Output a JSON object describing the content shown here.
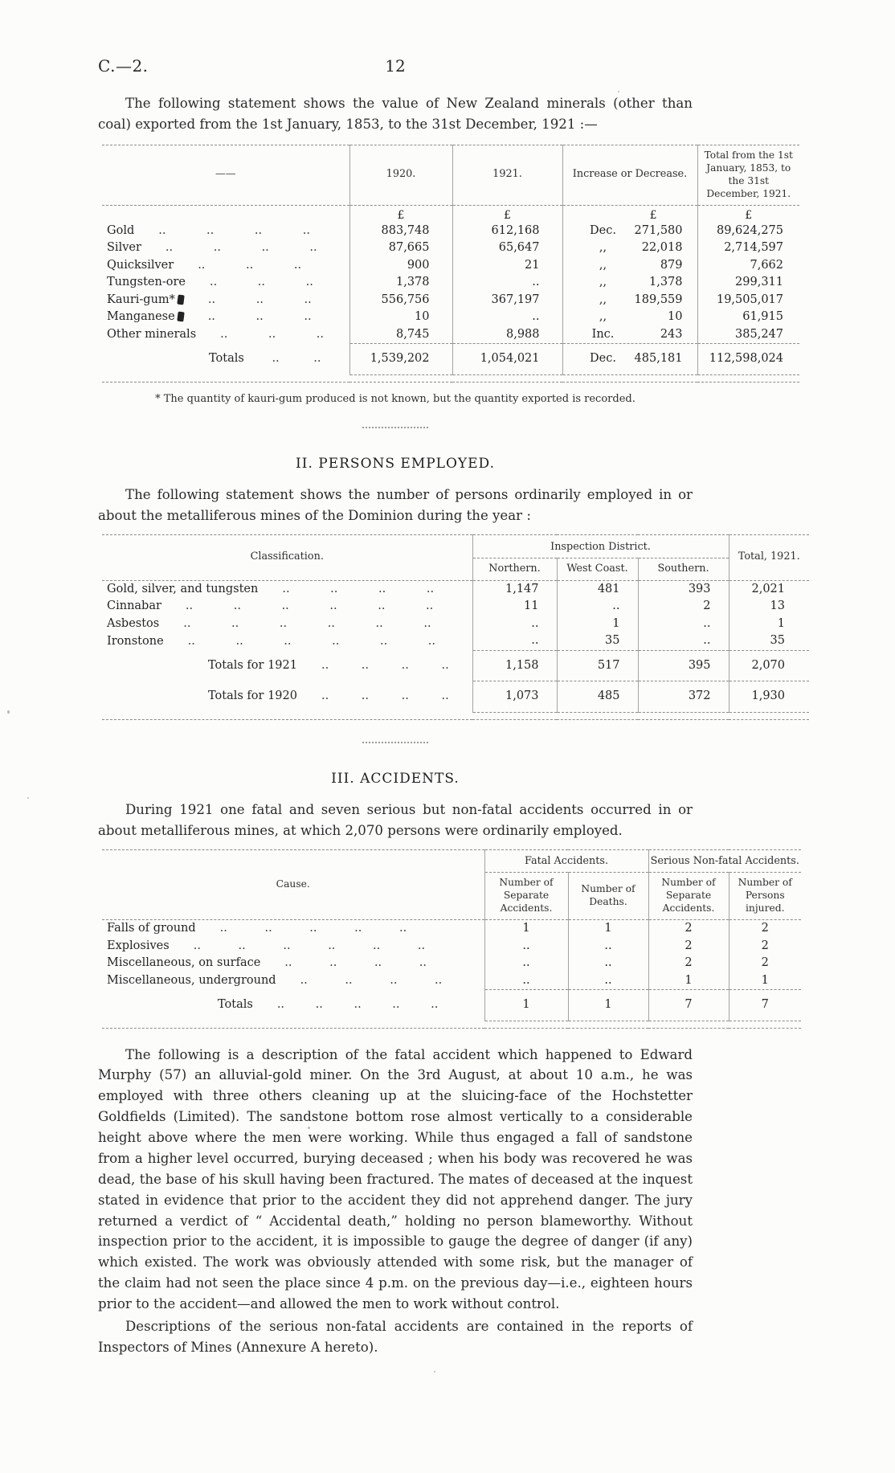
{
  "page": {
    "doc_ref": "C.—2.",
    "page_number": "12"
  },
  "colors": {
    "paper": "#fcfcfa",
    "ink": "#262626",
    "rule": "#8d8d8d"
  },
  "intro": "The following statement shows the value of New Zealand minerals (other than coal) exported from the 1st January, 1853, to the 31st December, 1921 :—",
  "minerals_table": {
    "headers": {
      "blank": "——",
      "y1920": "1920.",
      "y1921": "1921.",
      "change": "Increase or Decrease.",
      "total": "Total from the 1st January, 1853, to the 31st December, 1921."
    },
    "currency_symbol": "£",
    "rows": [
      {
        "label": "Gold",
        "dots": ".. .. .. ..",
        "v1920": "883,748",
        "v1921": "612,168",
        "change_prefix": "Dec.",
        "change": "271,580",
        "total": "89,624,275"
      },
      {
        "label": "Silver",
        "dots": ".. .. .. ..",
        "v1920": "87,665",
        "v1921": "65,647",
        "change_prefix": ",,",
        "change": "22,018",
        "total": "2,714,597"
      },
      {
        "label": "Quicksilver",
        "dots": ".. .. ..",
        "v1920": "900",
        "v1921": "21",
        "change_prefix": ",,",
        "change": "879",
        "total": "7,662"
      },
      {
        "label": "Tungsten-ore",
        "dots": ".. .. ..",
        "v1920": "1,378",
        "v1921": "..",
        "change_prefix": ",,",
        "change": "1,378",
        "total": "299,311"
      },
      {
        "label": "Kauri-gum*",
        "mark": true,
        "dots": ".. .. ..",
        "v1920": "556,756",
        "v1921": "367,197",
        "change_prefix": ",,",
        "change": "189,559",
        "total": "19,505,017"
      },
      {
        "label": "Manganese",
        "mark": true,
        "dots": ".. .. ..",
        "v1920": "10",
        "v1921": "..",
        "change_prefix": ",,",
        "change": "10",
        "total": "61,915"
      },
      {
        "label": "Other minerals",
        "dots": ".. .. ..",
        "v1920": "8,745",
        "v1921": "8,988",
        "change_prefix": "Inc.",
        "change": "243",
        "total": "385,247"
      }
    ],
    "totals": {
      "label": "Totals",
      "dots": ".. ..",
      "v1920": "1,539,202",
      "v1921": "1,054,021",
      "change_prefix": "Dec.",
      "change": "485,181",
      "total": "112,598,024"
    },
    "footnote": "* The quantity of kauri-gum produced is not known, but the quantity exported is recorded."
  },
  "section2": {
    "heading": "II. PERSONS EMPLOYED.",
    "intro": "The following statement shows the number of persons ordinarily employed in or about the metalliferous mines of the Dominion during the year :",
    "table": {
      "classification_header": "Classification.",
      "district_group_header": "Inspection District.",
      "district_headers": [
        "Northern.",
        "West Coast.",
        "Southern."
      ],
      "total_header": "Total, 1921.",
      "rows": [
        {
          "label": "Gold, silver, and tungsten",
          "dots": ".. .. .. ..",
          "northern": "1,147",
          "west_coast": "481",
          "southern": "393",
          "total": "2,021"
        },
        {
          "label": "Cinnabar",
          "dots": ".. .. .. .. .. ..",
          "northern": "11",
          "west_coast": "..",
          "southern": "2",
          "total": "13"
        },
        {
          "label": "Asbestos",
          "dots": ".. .. .. .. .. ..",
          "northern": "..",
          "west_coast": "1",
          "southern": "..",
          "total": "1"
        },
        {
          "label": "Ironstone",
          "dots": ".. .. .. .. .. ..",
          "northern": "..",
          "west_coast": "35",
          "southern": "..",
          "total": "35"
        }
      ],
      "totals_rows": [
        {
          "label": "Totals for 1921",
          "dots": ".. .. .. ..",
          "northern": "1,158",
          "west_coast": "517",
          "southern": "395",
          "total": "2,070"
        },
        {
          "label": "Totals for 1920",
          "dots": ".. .. .. ..",
          "northern": "1,073",
          "west_coast": "485",
          "southern": "372",
          "total": "1,930"
        }
      ]
    }
  },
  "section3": {
    "heading": "III. ACCIDENTS.",
    "intro": "During 1921 one fatal and seven serious but non-fatal accidents occurred in or about metalliferous mines, at which 2,070 persons were ordinarily employed.",
    "table": {
      "cause_header": "Cause.",
      "fatal_group_header": "Fatal Accidents.",
      "serious_group_header": "Serious Non-fatal Accidents.",
      "sub_headers": [
        "Number of Separate Accidents.",
        "Number of Deaths.",
        "Number of Separate Accidents.",
        "Number of Persons injured."
      ],
      "rows": [
        {
          "label": "Falls of ground",
          "dots": ".. .. .. .. ..",
          "c1": "1",
          "c2": "1",
          "c3": "2",
          "c4": "2"
        },
        {
          "label": "Explosives",
          "dots": ".. .. .. .. .. ..",
          "c1": "..",
          "c2": "..",
          "c3": "2",
          "c4": "2"
        },
        {
          "label": "Miscellaneous, on surface",
          "dots": ".. .. .. ..",
          "c1": "..",
          "c2": "..",
          "c3": "2",
          "c4": "2"
        },
        {
          "label": "Miscellaneous, underground",
          "dots": ".. .. .. ..",
          "c1": "..",
          "c2": "..",
          "c3": "1",
          "c4": "1"
        }
      ],
      "totals": {
        "label": "Totals",
        "dots": ".. .. .. .. ..",
        "c1": "1",
        "c2": "1",
        "c3": "7",
        "c4": "7"
      }
    }
  },
  "closing": {
    "para1": "The following is a description of the fatal accident which happened to Edward Murphy (57) an alluvial-gold miner.  On the 3rd August, at about 10 a.m., he was employed with three others cleaning up at the sluicing-face of the Hochstetter Goldfields (Limited).  The sandstone bottom rose almost vertically to a considerable height above where the men were working.  While thus engaged a fall of sandstone from a higher level occurred, burying deceased ;  when his body was recovered he was dead, the base of his skull having been fractured.  The mates of deceased at the inquest stated in evidence that prior to the accident they did not apprehend danger.  The jury returned a verdict of “ Accidental death,” holding no person blameworthy.  Without inspection prior to the accident, it is impossible to gauge the degree of danger (if any) which existed.  The work was obviously attended with some risk, but the manager of the claim had not seen the place since 4 p.m. on the previous day—i.e., eighteen hours prior to the accident—and allowed the men to work without control.",
    "para2": "Descriptions of the serious non-fatal accidents are contained in the reports of Inspectors of Mines (Annexure A hereto)."
  }
}
